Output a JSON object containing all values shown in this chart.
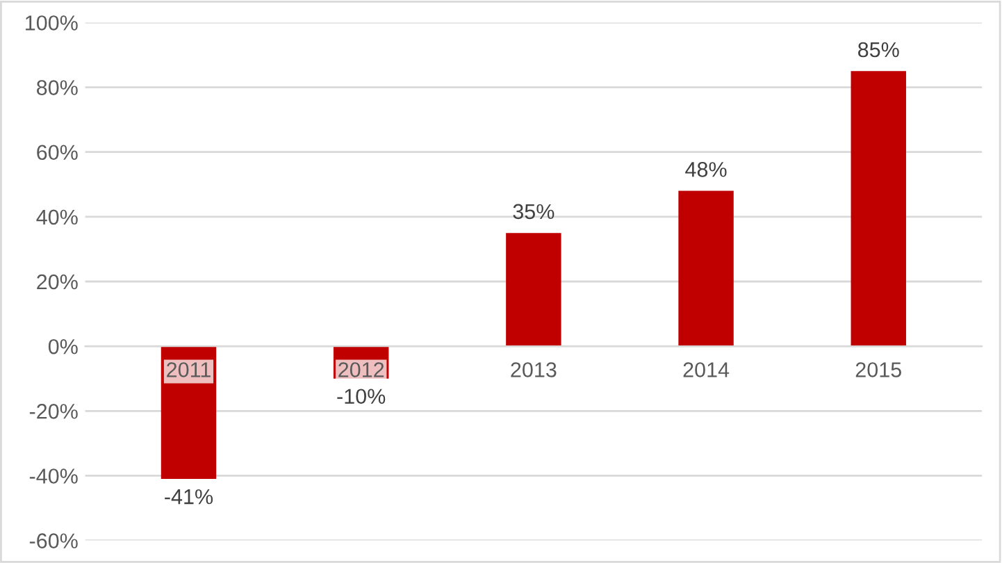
{
  "chart_data": {
    "type": "bar",
    "categories": [
      "2011",
      "2012",
      "2013",
      "2014",
      "2015"
    ],
    "values": [
      -41,
      -10,
      35,
      48,
      85
    ],
    "color": "#c00000",
    "value_labels": [
      "-41%",
      "-10%",
      "35%",
      "48%",
      "85%"
    ],
    "ylim": [
      -60,
      100
    ],
    "yticks": [
      {
        "value": -60,
        "label": "-60%"
      },
      {
        "value": -40,
        "label": "-40%"
      },
      {
        "value": -20,
        "label": "-20%"
      },
      {
        "value": 0,
        "label": "0%"
      },
      {
        "value": 20,
        "label": "20%"
      },
      {
        "value": 40,
        "label": "40%"
      },
      {
        "value": 60,
        "label": "60%"
      },
      {
        "value": 80,
        "label": "80%"
      },
      {
        "value": 100,
        "label": "100%"
      }
    ],
    "grid": "y"
  }
}
